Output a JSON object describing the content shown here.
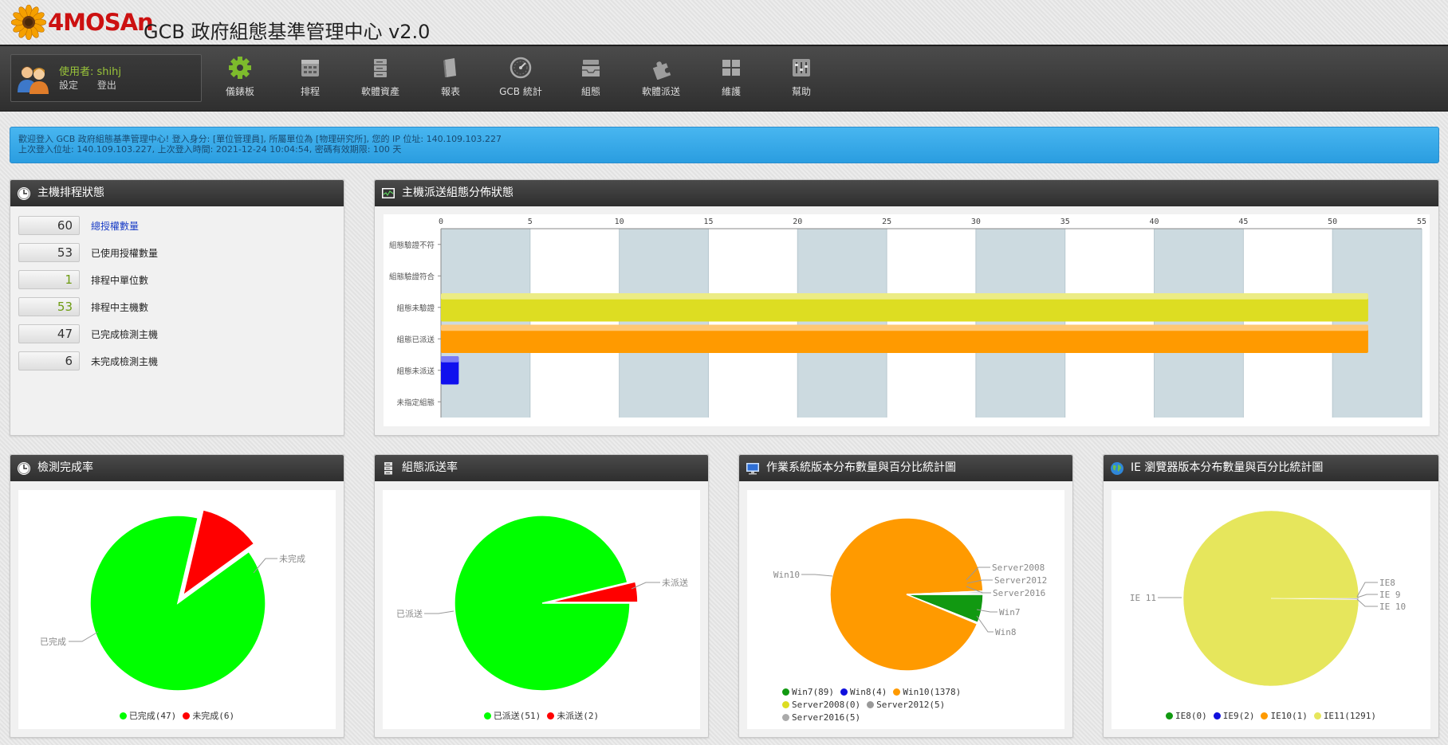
{
  "header": {
    "brand": "4MOSAn",
    "title": "GCB 政府組態基準管理中心 v2.0"
  },
  "user": {
    "name": "使用者: shihj",
    "settings": "設定",
    "logout": "登出"
  },
  "nav": [
    {
      "label": "儀錶板",
      "icon": "gear-icon",
      "color": "#7dbb2c"
    },
    {
      "label": "排程",
      "icon": "calendar-icon"
    },
    {
      "label": "軟體資產",
      "icon": "server-icon"
    },
    {
      "label": "報表",
      "icon": "book-icon"
    },
    {
      "label": "GCB 統計",
      "icon": "gauge-icon"
    },
    {
      "label": "組態",
      "icon": "inbox-icon"
    },
    {
      "label": "軟體派送",
      "icon": "puzzle-icon"
    },
    {
      "label": "維護",
      "icon": "grid-icon"
    },
    {
      "label": "幫助",
      "icon": "equalizer-icon"
    }
  ],
  "alert": {
    "line1": "歡迎登入 GCB 政府組態基準管理中心! 登入身分: [單位管理員], 所屬單位為 [物理研究所], 您的 IP 位址: 140.109.103.227",
    "line2": "上次登入位址: 140.109.103.227, 上次登入時間: 2021-12-24 10:04:54, 密碼有效期限: 100 天"
  },
  "schedule": {
    "title": "主機排程狀態",
    "rows": [
      {
        "value": "60",
        "label": "總授權數量",
        "color": "#333",
        "link": true
      },
      {
        "value": "53",
        "label": "已使用授權數量",
        "color": "#333",
        "link": false
      },
      {
        "value": "1",
        "label": "排程中單位數",
        "color": "#6d9b12",
        "link": false
      },
      {
        "value": "53",
        "label": "排程中主機數",
        "color": "#6d9b12",
        "link": false
      },
      {
        "value": "47",
        "label": "已完成檢測主機",
        "color": "#333",
        "link": false
      },
      {
        "value": "6",
        "label": "未完成檢測主機",
        "color": "#333",
        "link": false
      }
    ]
  },
  "bar_panel": {
    "title": "主機派送組態分佈狀態"
  },
  "completion": {
    "title": "檢測完成率"
  },
  "dispatch": {
    "title": "組態派送率"
  },
  "os": {
    "title": "作業系統版本分布數量與百分比統計圖"
  },
  "ie": {
    "title": "IE 瀏覽器版本分布數量與百分比統計圖"
  },
  "chart_data": [
    {
      "type": "bar",
      "orientation": "horizontal",
      "categories": [
        "組態驗證不符",
        "組態驗證符合",
        "組態未驗證",
        "組態已派送",
        "組態未派送",
        "未指定組態"
      ],
      "values": [
        0,
        0,
        52,
        52,
        1,
        0
      ],
      "colors": [
        "#dddd22",
        "#dddd22",
        "#dddd22",
        "#ff9a00",
        "#1010ee",
        "#cccccc"
      ],
      "xlim": [
        0,
        55
      ],
      "xticks": [
        0,
        5,
        10,
        15,
        20,
        25,
        30,
        35,
        40,
        45,
        50,
        55
      ],
      "axis_position": "top",
      "grid": true
    },
    {
      "type": "pie",
      "slices": [
        {
          "label": "已完成",
          "value": 47,
          "color": "#00ff00",
          "legend": "已完成(47)"
        },
        {
          "label": "未完成",
          "value": 6,
          "color": "#ff0000",
          "legend": "未完成(6)"
        }
      ],
      "legend_position": "bottom"
    },
    {
      "type": "pie",
      "slices": [
        {
          "label": "已派送",
          "value": 51,
          "color": "#00ff00",
          "legend": "已派送(51)"
        },
        {
          "label": "未派送",
          "value": 2,
          "color": "#ff0000",
          "legend": "未派送(2)"
        }
      ],
      "legend_position": "bottom"
    },
    {
      "type": "pie",
      "slices": [
        {
          "label": "Win7",
          "value": 89,
          "color": "#119911",
          "legend": "Win7(89)"
        },
        {
          "label": "Win8",
          "value": 4,
          "color": "#1010dd",
          "legend": "Win8(4)"
        },
        {
          "label": "Win10",
          "value": 1378,
          "color": "#ff9a00",
          "legend": "Win10(1378)"
        },
        {
          "label": "Server2008",
          "value": 0,
          "color": "#dddd22",
          "legend": "Server2008(0)"
        },
        {
          "label": "Server2012",
          "value": 5,
          "color": "#999999",
          "legend": "Server2012(5)"
        },
        {
          "label": "Server2016",
          "value": 5,
          "color": "#aaaaaa",
          "legend": "Server2016(5)"
        }
      ],
      "legend_position": "bottom"
    },
    {
      "type": "pie",
      "slices": [
        {
          "label": "IE8",
          "value": 0,
          "color": "#119911",
          "legend": "IE8(0)"
        },
        {
          "label": "IE 9",
          "value": 2,
          "color": "#1010dd",
          "legend": "IE9(2)"
        },
        {
          "label": "IE 10",
          "value": 1,
          "color": "#ff9a00",
          "legend": "IE10(1)"
        },
        {
          "label": "IE 11",
          "value": 1291,
          "color": "#e6e65c",
          "legend": "IE11(1291)"
        }
      ],
      "legend_position": "bottom"
    }
  ]
}
